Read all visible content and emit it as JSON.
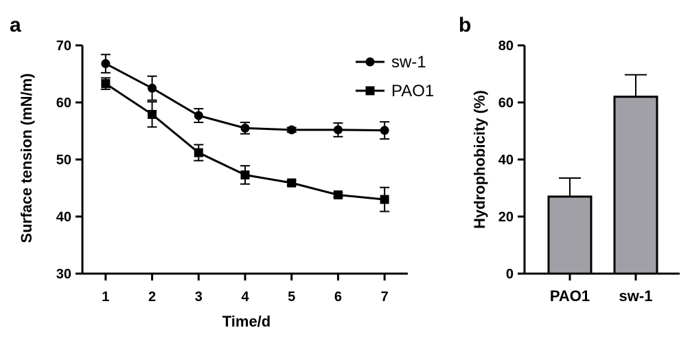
{
  "panels": {
    "a": "a",
    "b": "b"
  },
  "chart_data": [
    {
      "type": "line",
      "title": "",
      "xlabel": "Time/d",
      "ylabel": "Surface tension (mN/m)",
      "x": [
        1,
        2,
        3,
        4,
        5,
        6,
        7
      ],
      "xlim": [
        0.5,
        7.5
      ],
      "ylim": [
        30,
        70
      ],
      "yticks": [
        30,
        40,
        50,
        60,
        70
      ],
      "legend_position": "top-right",
      "series": [
        {
          "name": "sw-1",
          "marker": "circle",
          "values": [
            66.8,
            62.5,
            57.7,
            55.5,
            55.2,
            55.2,
            55.1
          ],
          "errors": [
            1.6,
            2.1,
            1.2,
            1.0,
            0.4,
            1.2,
            1.5
          ]
        },
        {
          "name": "PAO1",
          "marker": "square",
          "values": [
            63.3,
            57.9,
            51.2,
            47.3,
            45.9,
            43.8,
            43.0
          ],
          "errors": [
            1.0,
            2.2,
            1.4,
            1.6,
            0.4,
            0.4,
            2.1
          ]
        }
      ]
    },
    {
      "type": "bar",
      "title": "",
      "xlabel": "",
      "ylabel": "Hydrophobicity (%)",
      "categories": [
        "PAO1",
        "sw-1"
      ],
      "values": [
        27.0,
        62.0
      ],
      "errors": [
        6.5,
        7.7
      ],
      "ylim": [
        0,
        80
      ],
      "yticks": [
        0,
        20,
        40,
        60,
        80
      ],
      "bar_color": "#a0a0a6"
    }
  ]
}
